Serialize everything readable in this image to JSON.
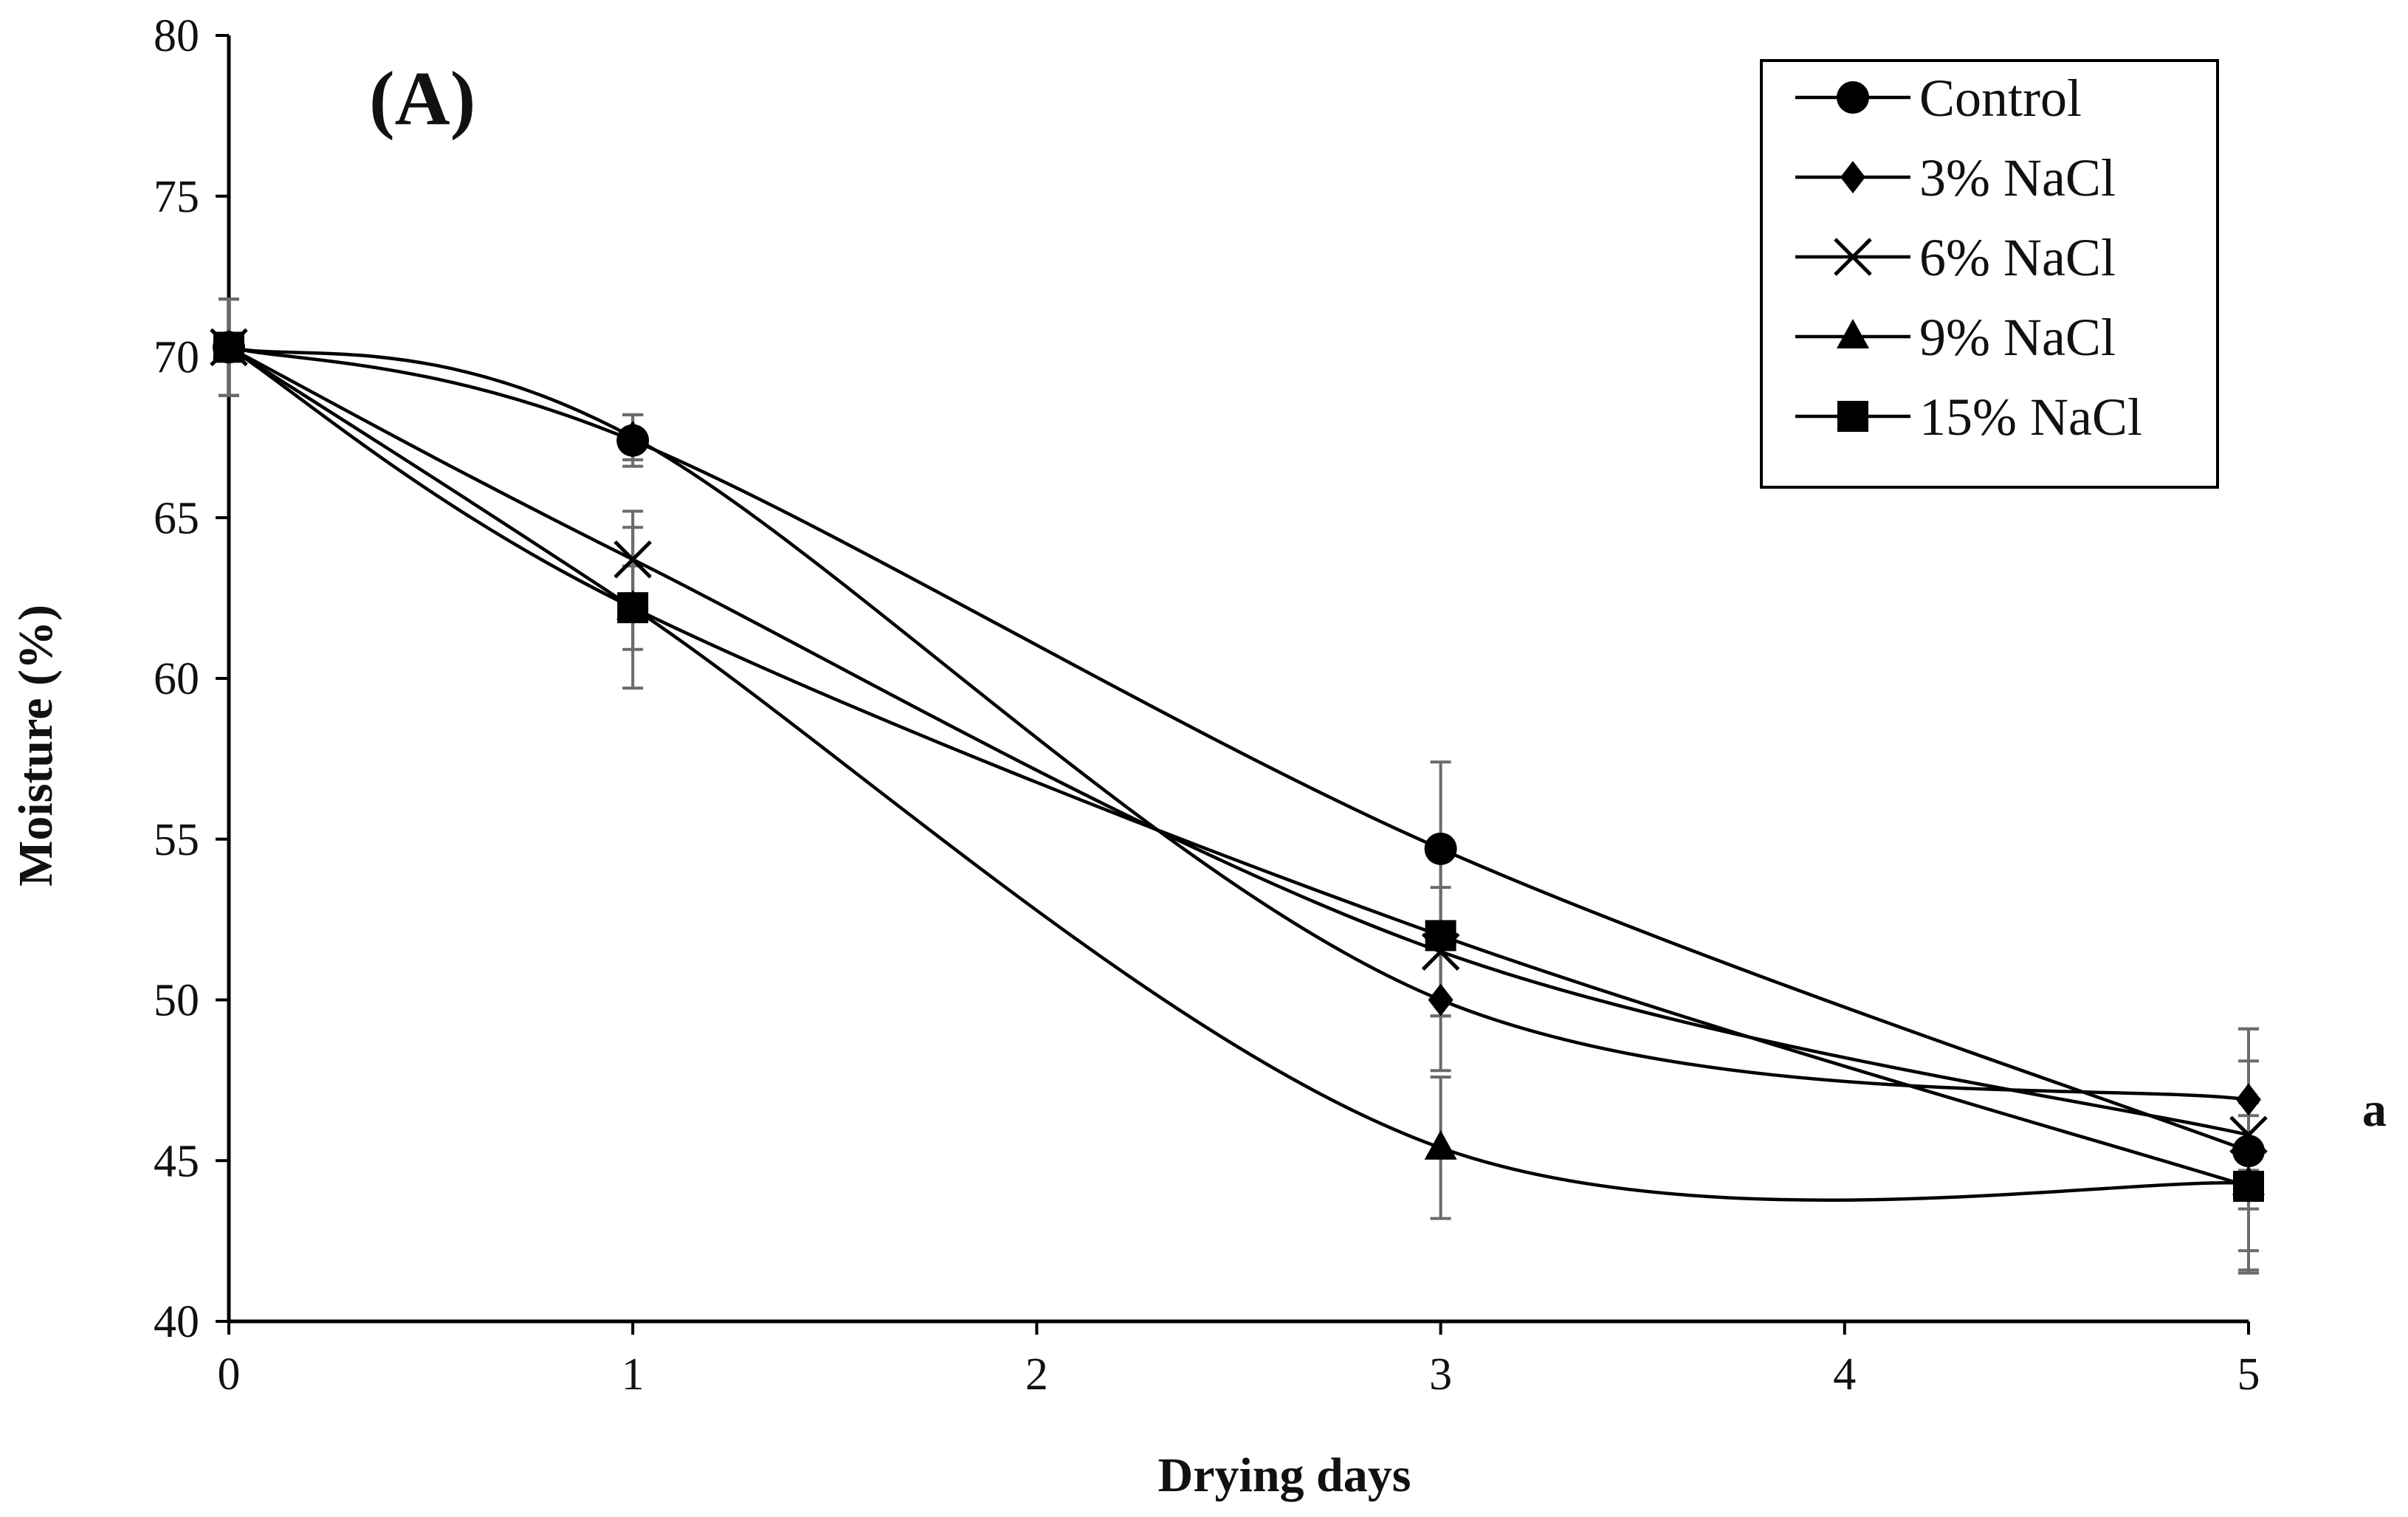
{
  "chart_data": {
    "type": "line",
    "panel_label": "(A)",
    "side_annotation": "a",
    "xlabel": "Drying days",
    "ylabel": "Moisture (%)",
    "xlim": [
      0,
      5
    ],
    "ylim": [
      40,
      80
    ],
    "xticks": [
      0,
      1,
      2,
      3,
      4,
      5
    ],
    "yticks": [
      40,
      45,
      50,
      55,
      60,
      65,
      70,
      75,
      80
    ],
    "grid": false,
    "legend_position": "top-right",
    "x": [
      0,
      1,
      3,
      5
    ],
    "series": [
      {
        "name": "Control",
        "marker": "circle",
        "values": [
          70.3,
          67.4,
          54.7,
          45.3
        ],
        "errors": [
          1.5,
          0.8,
          2.7,
          3.8
        ]
      },
      {
        "name": "3% NaCl",
        "marker": "diamond",
        "values": [
          70.3,
          67.5,
          50.0,
          46.9
        ],
        "errors": [
          1.5,
          0.7,
          2.2,
          2.2
        ]
      },
      {
        "name": "6% NaCl",
        "marker": "x",
        "values": [
          70.3,
          63.7,
          51.5,
          45.8
        ],
        "errors": [
          1.5,
          1.5,
          2.0,
          2.3
        ]
      },
      {
        "name": "9% NaCl",
        "marker": "triangle",
        "values": [
          70.3,
          62.2,
          45.4,
          44.3
        ],
        "errors": [
          1.5,
          1.3,
          2.2,
          2.1
        ]
      },
      {
        "name": "15% NaCl",
        "marker": "square",
        "values": [
          70.3,
          62.2,
          52.0,
          44.2
        ],
        "errors": [
          1.5,
          2.5,
          2.5,
          2.6
        ]
      }
    ]
  }
}
